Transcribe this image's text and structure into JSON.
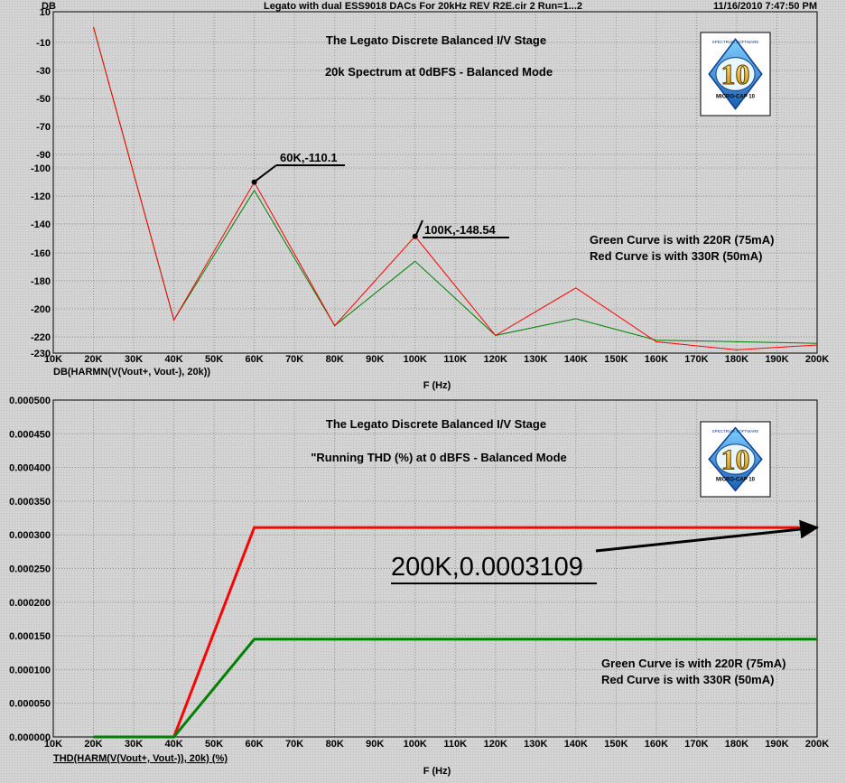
{
  "header": {
    "left": "DB",
    "center": "Legato with dual ESS9018 DACs For 20kHz REV R2E.cir 2 Run=1...2",
    "right": "11/16/2010 7:47:50 PM"
  },
  "colors": {
    "green": "#008000",
    "red": "#ff0000",
    "plot_bg": "#d4d4d4"
  },
  "logo": {
    "number": "10",
    "ring_text": "MICRO-CAP 10",
    "top_text": "SPECTRUM SOFTWARE"
  },
  "chart_data": [
    {
      "type": "line",
      "title": "The Legato Discrete Balanced I/V Stage",
      "subtitle": "20k Spectrum at 0dBFS - Balanced Mode",
      "xlabel": "F (Hz)",
      "ylabel": "DB(HARMN(V(Vout+, Vout-), 20k))",
      "xlim": [
        10000,
        200000
      ],
      "ylim": [
        -230,
        10
      ],
      "x_ticks": [
        10000,
        20000,
        30000,
        40000,
        50000,
        60000,
        70000,
        80000,
        90000,
        100000,
        110000,
        120000,
        130000,
        140000,
        150000,
        160000,
        170000,
        180000,
        190000,
        200000
      ],
      "x_tick_labels": [
        "10K",
        "20K",
        "30K",
        "40K",
        "50K",
        "60K",
        "70K",
        "80K",
        "90K",
        "100K",
        "110K",
        "120K",
        "130K",
        "140K",
        "150K",
        "160K",
        "170K",
        "180K",
        "190K",
        "200K"
      ],
      "y_ticks": [
        10,
        -10,
        -30,
        -50,
        -70,
        -90,
        -100,
        -120,
        -140,
        -160,
        -180,
        -200,
        -220,
        -230
      ],
      "y_tick_labels": [
        "10",
        "-10",
        "-30",
        "-50",
        "-70",
        "-90",
        "-100",
        "-120",
        "-140",
        "-160",
        "-180",
        "-200",
        "-220",
        "-230"
      ],
      "y_axis_segments": [
        {
          "from": -230,
          "to": -90,
          "scale": 20
        },
        {
          "from": -90,
          "to": 10,
          "scale": 20
        }
      ],
      "grid": true,
      "series": [
        {
          "color": "green",
          "x": [
            20000,
            40000,
            60000,
            80000,
            100000,
            120000,
            140000,
            160000,
            180000,
            200000
          ],
          "y": [
            0,
            -208,
            -116,
            -212,
            -166,
            -219,
            -207,
            -222,
            -223,
            -224
          ]
        },
        {
          "color": "red",
          "x": [
            20000,
            40000,
            60000,
            80000,
            100000,
            120000,
            140000,
            160000,
            180000,
            200000
          ],
          "y": [
            0,
            -208,
            -110.1,
            -212,
            -148.54,
            -219,
            -185,
            -223,
            -228,
            -225
          ]
        }
      ],
      "annotations": [
        {
          "text": "60K,-110.1",
          "x": 60000,
          "y": -110.1
        },
        {
          "text": "100K,-148.54",
          "x": 100000,
          "y": -148.54
        }
      ],
      "notes": [
        "Green Curve is with 220R (75mA)",
        "Red Curve is with 330R (50mA)"
      ]
    },
    {
      "type": "line",
      "title": "The Legato Discrete Balanced I/V Stage",
      "subtitle": "\"Running THD (%) at 0 dBFS - Balanced Mode",
      "xlabel": "F (Hz)",
      "ylabel": "THD(HARM(V(Vout+, Vout-)), 20k) (%)",
      "xlim": [
        10000,
        200000
      ],
      "ylim": [
        0,
        0.0005
      ],
      "x_ticks": [
        10000,
        20000,
        30000,
        40000,
        50000,
        60000,
        70000,
        80000,
        90000,
        100000,
        110000,
        120000,
        130000,
        140000,
        150000,
        160000,
        170000,
        180000,
        190000,
        200000
      ],
      "x_tick_labels": [
        "10K",
        "20K",
        "30K",
        "40K",
        "50K",
        "60K",
        "70K",
        "80K",
        "90K",
        "100K",
        "110K",
        "120K",
        "130K",
        "140K",
        "150K",
        "160K",
        "170K",
        "180K",
        "190K",
        "200K"
      ],
      "y_ticks": [
        0,
        5e-05,
        0.0001,
        0.00015,
        0.0002,
        0.00025,
        0.0003,
        0.00035,
        0.0004,
        0.00045,
        0.0005
      ],
      "y_tick_labels": [
        "0.000000",
        "0.000050",
        "0.000100",
        "0.000150",
        "0.000200",
        "0.000250",
        "0.000300",
        "0.000350",
        "0.000400",
        "0.000450",
        "0.000500"
      ],
      "grid": true,
      "series": [
        {
          "color": "red",
          "x": [
            20000,
            40000,
            60000,
            200000
          ],
          "y": [
            0,
            0,
            0.0003109,
            0.0003109
          ]
        },
        {
          "color": "green",
          "x": [
            20000,
            40000,
            60000,
            200000
          ],
          "y": [
            0,
            0,
            0.000145,
            0.000145
          ]
        }
      ],
      "annotations": [
        {
          "text": "200K,0.0003109",
          "x": 200000,
          "y": 0.0003109
        }
      ],
      "notes": [
        "Green Curve is with 220R (75mA)",
        "Red Curve is with 330R (50mA)"
      ]
    }
  ]
}
